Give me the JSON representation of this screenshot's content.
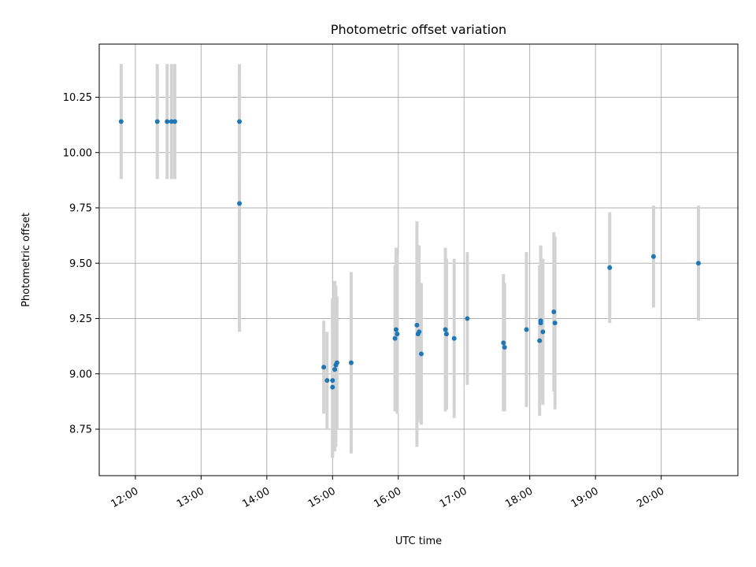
{
  "chart_data": {
    "type": "scatter",
    "title": "Photometric offset variation",
    "xlabel": "UTC time",
    "ylabel": "Photometric offset",
    "x_ticks": [
      "12:00",
      "13:00",
      "14:00",
      "15:00",
      "16:00",
      "17:00",
      "18:00",
      "19:00",
      "20:00"
    ],
    "y_ticks": [
      "8.75",
      "9.00",
      "9.25",
      "9.50",
      "9.75",
      "10.00",
      "10.25"
    ],
    "x_range": [
      "11:27",
      "21:10"
    ],
    "y_range": [
      8.54,
      10.49
    ],
    "grid": true,
    "marker_color": "#1f77b4",
    "errorbar_color": "#d3d3d3",
    "series": [
      {
        "points": [
          {
            "time": "11:47",
            "y": 10.14,
            "yerr_low": 0.26,
            "yerr_high": 0.26
          },
          {
            "time": "12:20",
            "y": 10.14,
            "yerr_low": 0.26,
            "yerr_high": 0.26
          },
          {
            "time": "12:29",
            "y": 10.14,
            "yerr_low": 0.26,
            "yerr_high": 0.26
          },
          {
            "time": "12:33",
            "y": 10.14,
            "yerr_low": 0.26,
            "yerr_high": 0.26
          },
          {
            "time": "12:36",
            "y": 10.14,
            "yerr_low": 0.26,
            "yerr_high": 0.26
          },
          {
            "time": "13:35",
            "y": 10.14,
            "yerr_low": 0.26,
            "yerr_high": 0.26
          },
          {
            "time": "13:35",
            "y": 9.77,
            "yerr_low": 0.58,
            "yerr_high": 0.58
          },
          {
            "time": "14:52",
            "y": 9.03,
            "yerr_low": 0.21,
            "yerr_high": 0.21
          },
          {
            "time": "14:55",
            "y": 8.97,
            "yerr_low": 0.22,
            "yerr_high": 0.22
          },
          {
            "time": "15:00",
            "y": 8.94,
            "yerr_low": 0.32,
            "yerr_high": 0.4
          },
          {
            "time": "15:00",
            "y": 8.97,
            "yerr_low": 0.35,
            "yerr_high": 0.37
          },
          {
            "time": "15:02",
            "y": 9.02,
            "yerr_low": 0.37,
            "yerr_high": 0.4
          },
          {
            "time": "15:03",
            "y": 9.04,
            "yerr_low": 0.37,
            "yerr_high": 0.36
          },
          {
            "time": "15:04",
            "y": 9.05,
            "yerr_low": 0.3,
            "yerr_high": 0.3
          },
          {
            "time": "15:17",
            "y": 9.05,
            "yerr_low": 0.41,
            "yerr_high": 0.41
          },
          {
            "time": "15:57",
            "y": 9.16,
            "yerr_low": 0.33,
            "yerr_high": 0.33
          },
          {
            "time": "15:58",
            "y": 9.2,
            "yerr_low": 0.37,
            "yerr_high": 0.37
          },
          {
            "time": "15:59",
            "y": 9.18,
            "yerr_low": 0.36,
            "yerr_high": 0.36
          },
          {
            "time": "16:17",
            "y": 9.22,
            "yerr_low": 0.55,
            "yerr_high": 0.47
          },
          {
            "time": "16:18",
            "y": 9.18,
            "yerr_low": 0.4,
            "yerr_high": 0.4
          },
          {
            "time": "16:19",
            "y": 9.19,
            "yerr_low": 0.39,
            "yerr_high": 0.39
          },
          {
            "time": "16:21",
            "y": 9.09,
            "yerr_low": 0.32,
            "yerr_high": 0.32
          },
          {
            "time": "16:43",
            "y": 9.2,
            "yerr_low": 0.37,
            "yerr_high": 0.37
          },
          {
            "time": "16:44",
            "y": 9.18,
            "yerr_low": 0.34,
            "yerr_high": 0.34
          },
          {
            "time": "16:51",
            "y": 9.16,
            "yerr_low": 0.36,
            "yerr_high": 0.36
          },
          {
            "time": "17:03",
            "y": 9.25,
            "yerr_low": 0.3,
            "yerr_high": 0.3
          },
          {
            "time": "17:36",
            "y": 9.14,
            "yerr_low": 0.31,
            "yerr_high": 0.31
          },
          {
            "time": "17:37",
            "y": 9.12,
            "yerr_low": 0.29,
            "yerr_high": 0.29
          },
          {
            "time": "17:57",
            "y": 9.2,
            "yerr_low": 0.35,
            "yerr_high": 0.35
          },
          {
            "time": "18:09",
            "y": 9.15,
            "yerr_low": 0.34,
            "yerr_high": 0.34
          },
          {
            "time": "18:10",
            "y": 9.23,
            "yerr_low": 0.35,
            "yerr_high": 0.35
          },
          {
            "time": "18:10",
            "y": 9.24,
            "yerr_low": 0.34,
            "yerr_high": 0.34
          },
          {
            "time": "18:12",
            "y": 9.19,
            "yerr_low": 0.33,
            "yerr_high": 0.33
          },
          {
            "time": "18:22",
            "y": 9.28,
            "yerr_low": 0.36,
            "yerr_high": 0.36
          },
          {
            "time": "18:23",
            "y": 9.23,
            "yerr_low": 0.39,
            "yerr_high": 0.39
          },
          {
            "time": "19:13",
            "y": 9.48,
            "yerr_low": 0.25,
            "yerr_high": 0.25
          },
          {
            "time": "19:53",
            "y": 9.53,
            "yerr_low": 0.23,
            "yerr_high": 0.23
          },
          {
            "time": "20:34",
            "y": 9.5,
            "yerr_low": 0.26,
            "yerr_high": 0.26
          }
        ]
      }
    ]
  }
}
